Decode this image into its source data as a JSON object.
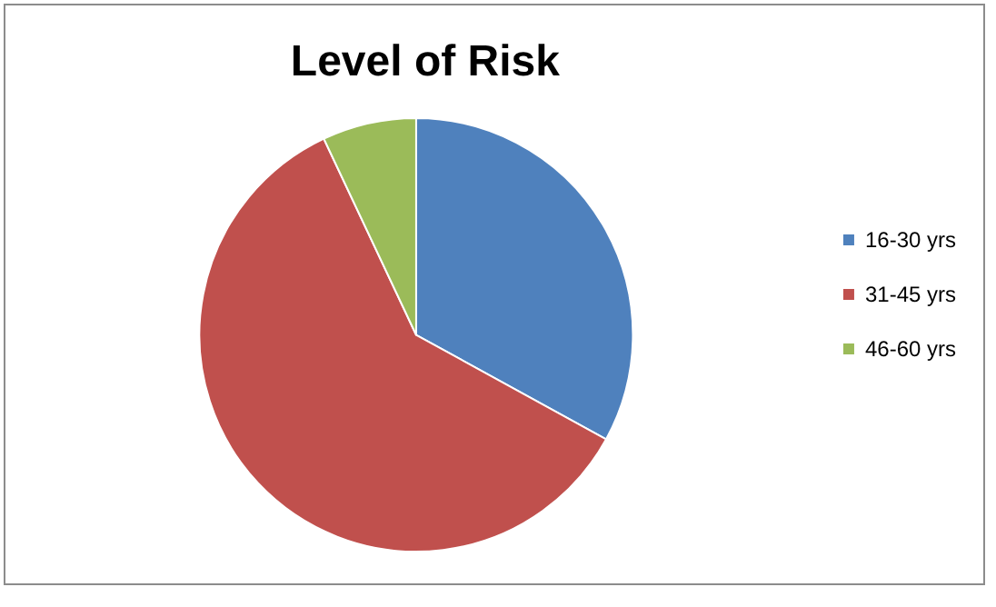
{
  "chart_data": {
    "type": "pie",
    "title": "Level of Risk",
    "categories": [
      "16-30 yrs",
      "31-45 yrs",
      "46-60 yrs"
    ],
    "values": [
      33,
      60,
      7
    ],
    "colors": [
      "#4f81bd",
      "#c0504d",
      "#9bbb59"
    ],
    "legend": "right"
  }
}
